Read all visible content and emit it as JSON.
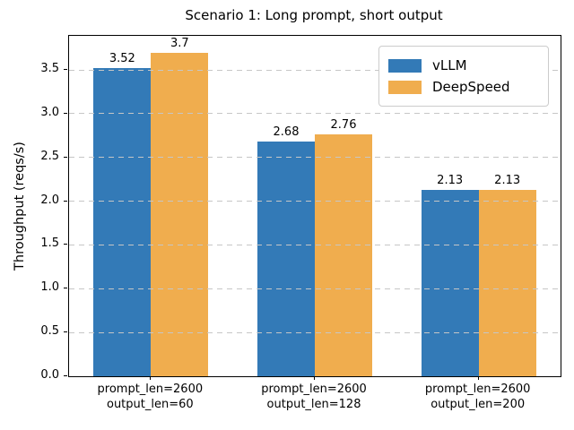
{
  "figure": {
    "background": "#ffffff"
  },
  "chart_data": {
    "type": "bar",
    "title": "Scenario 1: Long prompt, short output",
    "xlabel": "",
    "ylabel": "Throughput (reqs/s)",
    "categories": [
      {
        "line1": "prompt_len=2600",
        "line2": "output_len=60"
      },
      {
        "line1": "prompt_len=2600",
        "line2": "output_len=128"
      },
      {
        "line1": "prompt_len=2600",
        "line2": "output_len=200"
      }
    ],
    "series": [
      {
        "name": "vLLM",
        "color": "#337ab7",
        "values": [
          3.52,
          2.68,
          2.13
        ],
        "labels": [
          "3.52",
          "2.68",
          "2.13"
        ]
      },
      {
        "name": "DeepSpeed",
        "color": "#f0ad4e",
        "values": [
          3.7,
          2.76,
          2.13
        ],
        "labels": [
          "3.7",
          "2.76",
          "2.13"
        ]
      }
    ],
    "ylim": [
      0,
      3.89
    ],
    "yticks": [
      0.0,
      0.5,
      1.0,
      1.5,
      2.0,
      2.5,
      3.0,
      3.5
    ],
    "ytick_labels": [
      "0.0",
      "0.5",
      "1.0",
      "1.5",
      "2.0",
      "2.5",
      "3.0",
      "3.5"
    ],
    "grid": "dashed-horizontal",
    "grid_color": "#c6c6c6",
    "grid_over_bars": true,
    "legend_position": "upper-right",
    "bar_group_width_fraction": 0.7
  }
}
